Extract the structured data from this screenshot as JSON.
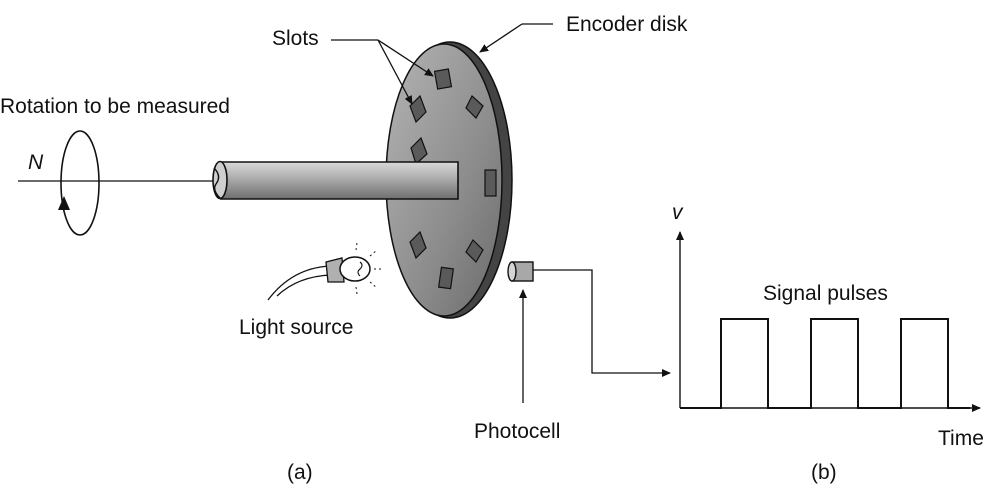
{
  "labels": {
    "slots": "Slots",
    "encoder_disk": "Encoder disk",
    "rotation": "Rotation to be measured",
    "n_symbol": "N",
    "light_source": "Light source",
    "photocell": "Photocell",
    "signal_pulses": "Signal pulses",
    "v_axis": "v",
    "time_axis": "Time",
    "part_a": "(a)",
    "part_b": "(b)"
  },
  "colors": {
    "ink": "#111111",
    "disk_fill": "#8f8f8f",
    "shaft_fill": "#9a9a9a",
    "slot_fill": "#5a5a5a"
  },
  "signal": {
    "pulse_count": 3,
    "waveform": "square"
  }
}
